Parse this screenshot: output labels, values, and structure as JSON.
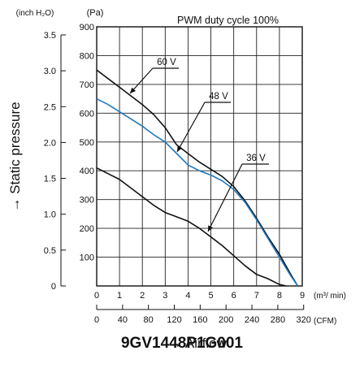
{
  "chart_data": {
    "type": "line",
    "title": "PWM duty cycle 100%",
    "model": "9GV1448P1G001",
    "x": {
      "unit": "(m³/ min)",
      "range": [
        0,
        9
      ],
      "ticks": [
        "0",
        "1",
        "2",
        "3",
        "4",
        "5",
        "6",
        "7",
        "8",
        "9"
      ]
    },
    "x2": {
      "unit": "(CFM)",
      "ticks": [
        "0",
        "40",
        "80",
        "120",
        "160",
        "200",
        "240",
        "280",
        "320"
      ],
      "label": "→ Airflow"
    },
    "y": {
      "unit": "(Pa)",
      "range": [
        0,
        900
      ],
      "ticks": [
        "0",
        "100",
        "200",
        "300",
        "400",
        "500",
        "600",
        "700",
        "800",
        "900"
      ],
      "label": "→ Static pressure"
    },
    "y2": {
      "unit": "(inch H₂O)",
      "ticks": [
        "0",
        "0.5",
        "1.0",
        "1.5",
        "2.0",
        "2.5",
        "3.0",
        "3.5"
      ]
    },
    "grid": true,
    "series": [
      {
        "name": "60 V",
        "color": "#111111",
        "x": [
          0,
          0.5,
          1,
          1.5,
          2,
          2.5,
          3,
          3.5,
          4,
          4.5,
          5,
          5.5,
          6,
          6.5,
          7,
          7.5,
          8,
          8.5,
          8.8
        ],
        "y": [
          750,
          720,
          690,
          660,
          630,
          595,
          550,
          490,
          460,
          430,
          405,
          380,
          345,
          295,
          235,
          170,
          110,
          40,
          0
        ]
      },
      {
        "name": "48 V",
        "color": "#1f7bc1",
        "x": [
          0,
          0.5,
          1,
          1.5,
          2,
          2.5,
          3,
          3.5,
          4,
          4.5,
          5,
          5.5,
          6,
          6.5,
          7,
          7.5,
          8,
          8.5,
          8.8
        ],
        "y": [
          650,
          630,
          605,
          580,
          555,
          525,
          500,
          460,
          420,
          400,
          385,
          365,
          335,
          290,
          230,
          165,
          100,
          35,
          0
        ]
      },
      {
        "name": "36 V",
        "color": "#111111",
        "x": [
          0,
          0.5,
          1,
          1.5,
          2,
          2.5,
          3,
          3.5,
          4,
          4.5,
          5,
          5.5,
          6,
          6.5,
          7,
          7.5,
          8,
          8.3
        ],
        "y": [
          410,
          390,
          370,
          340,
          310,
          280,
          255,
          240,
          225,
          200,
          170,
          140,
          105,
          70,
          40,
          25,
          5,
          0
        ]
      }
    ]
  }
}
